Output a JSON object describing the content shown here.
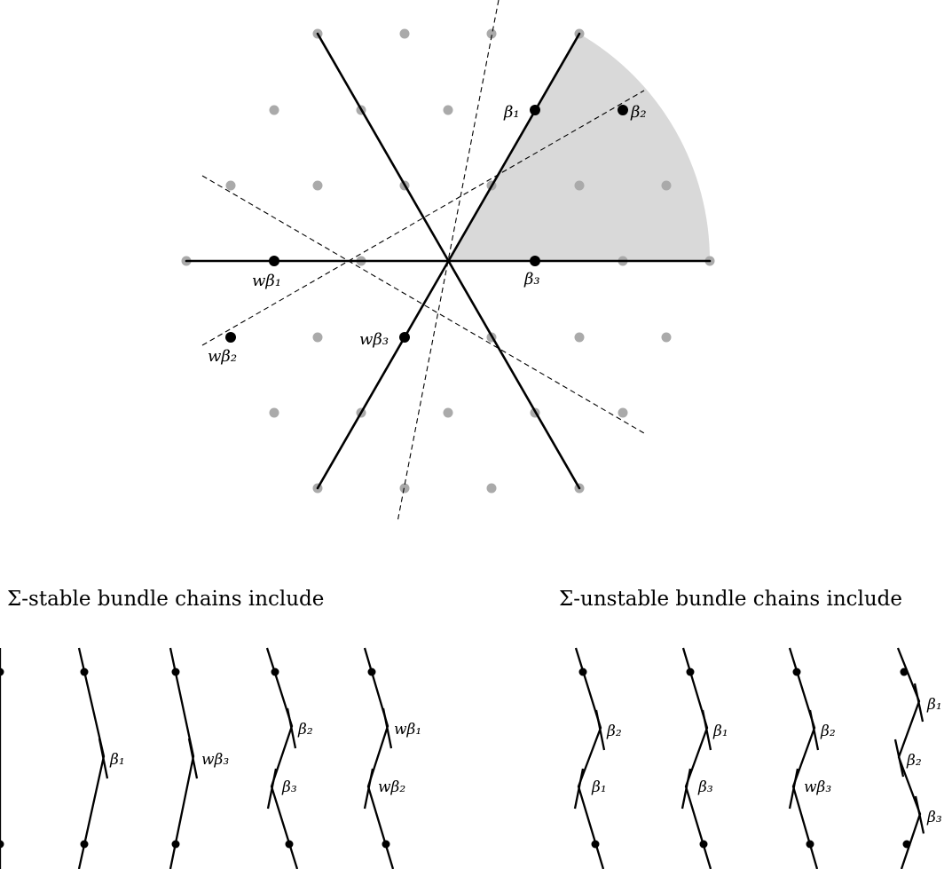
{
  "colors": {
    "sector": "#d9d9d9",
    "lattice": "#aaaaaa",
    "ink": "#000000"
  },
  "lattice": {
    "labels": {
      "b1": "β₁",
      "b2": "β₂",
      "b3": "β₃",
      "wb1": "wβ₁",
      "wb2": "wβ₂",
      "wb3": "wβ₃"
    }
  },
  "captions": {
    "stable": "Σ-stable bundle chains include",
    "unstable": "Σ-unstable bundle chains include"
  },
  "chains": {
    "stable": [
      {
        "labels": []
      },
      {
        "labels": [
          "β₁"
        ]
      },
      {
        "labels": [
          "wβ₃"
        ]
      },
      {
        "labels": [
          "β₂",
          "β₃"
        ]
      },
      {
        "labels": [
          "wβ₁",
          "wβ₂"
        ]
      }
    ],
    "unstable": [
      {
        "labels": [
          "β₂",
          "β₁"
        ]
      },
      {
        "labels": [
          "β₁",
          "β₃"
        ]
      },
      {
        "labels": [
          "β₂",
          "wβ₃"
        ]
      },
      {
        "labels": [
          "β₁",
          "β₂",
          "β₃"
        ]
      }
    ]
  }
}
